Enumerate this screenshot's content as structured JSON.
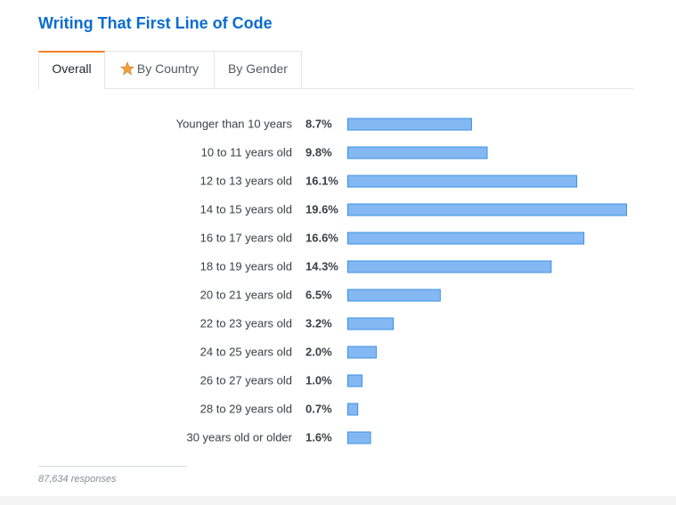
{
  "title": "Writing That First Line of Code",
  "tabs": {
    "overall": "Overall",
    "by_country": "By Country",
    "by_gender": "By Gender"
  },
  "footer": {
    "responses": "87,634 responses"
  },
  "colors": {
    "title": "#0a6ccf",
    "active_tab_accent": "#f48024",
    "bar_fill": "#84b8f3",
    "bar_stroke": "#3b8fe4",
    "star": "#f2a23a"
  },
  "chart_data": {
    "type": "bar",
    "orientation": "horizontal",
    "title": "Writing That First Line of Code",
    "xlabel": "",
    "ylabel": "",
    "unit": "%",
    "xlim": [
      0,
      19.6
    ],
    "grid": false,
    "categories": [
      "Younger than 10 years",
      "10 to 11 years old",
      "12 to 13 years old",
      "14 to 15 years old",
      "16 to 17 years old",
      "18 to 19 years old",
      "20 to 21 years old",
      "22 to 23 years old",
      "24 to 25 years old",
      "26 to 27 years old",
      "28 to 29 years old",
      "30 years old or older"
    ],
    "values": [
      8.7,
      9.8,
      16.1,
      19.6,
      16.6,
      14.3,
      6.5,
      3.2,
      2.0,
      1.0,
      0.7,
      1.6
    ],
    "value_labels": [
      "8.7%",
      "9.8%",
      "16.1%",
      "19.6%",
      "16.6%",
      "14.3%",
      "6.5%",
      "3.2%",
      "2.0%",
      "1.0%",
      "0.7%",
      "1.6%"
    ]
  }
}
